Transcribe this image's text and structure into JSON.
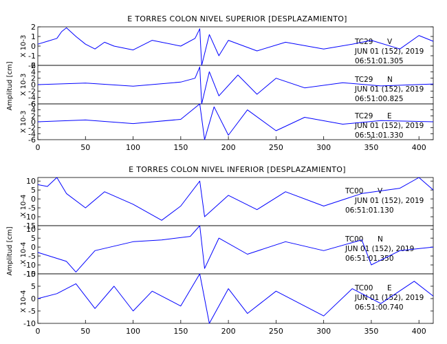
{
  "chart_data": [
    {
      "type": "line",
      "title": "E TORRES COLON NIVEL SUPERIOR [DESPLAZAMIENTO]",
      "ylabel": "Amplitud [cm]",
      "xlim": [
        0,
        415
      ],
      "x_ticks": [
        0,
        50,
        100,
        150,
        200,
        250,
        300,
        350,
        400
      ],
      "line_color": "#0000ff",
      "panels": [
        {
          "station": "TC29",
          "component": "V",
          "scale_label": "X 10-3",
          "date": "JUN 01 (152), 2019",
          "time": "06:51:01.305",
          "ylim": [
            -2,
            2
          ],
          "y_ticks": [
            -2,
            -1,
            0,
            1,
            2
          ],
          "series": [
            {
              "x": 0,
              "y": 0.2
            },
            {
              "x": 10,
              "y": 0.5
            },
            {
              "x": 20,
              "y": 0.8
            },
            {
              "x": 25,
              "y": 1.5
            },
            {
              "x": 30,
              "y": 1.9
            },
            {
              "x": 40,
              "y": 1.0
            },
            {
              "x": 50,
              "y": 0.2
            },
            {
              "x": 60,
              "y": -0.3
            },
            {
              "x": 70,
              "y": 0.4
            },
            {
              "x": 80,
              "y": 0.0
            },
            {
              "x": 100,
              "y": -0.4
            },
            {
              "x": 120,
              "y": 0.6
            },
            {
              "x": 150,
              "y": 0.0
            },
            {
              "x": 165,
              "y": 0.8
            },
            {
              "x": 170,
              "y": 1.8
            },
            {
              "x": 172,
              "y": -2.0
            },
            {
              "x": 180,
              "y": 1.2
            },
            {
              "x": 190,
              "y": -1.0
            },
            {
              "x": 200,
              "y": 0.6
            },
            {
              "x": 230,
              "y": -0.5
            },
            {
              "x": 260,
              "y": 0.4
            },
            {
              "x": 300,
              "y": -0.3
            },
            {
              "x": 330,
              "y": 0.2
            },
            {
              "x": 350,
              "y": 0.6
            },
            {
              "x": 380,
              "y": -0.3
            },
            {
              "x": 400,
              "y": 1.1
            },
            {
              "x": 415,
              "y": 0.5
            }
          ]
        },
        {
          "station": "TC29",
          "component": "N",
          "scale_label": "X 10-3",
          "date": "JUN 01 (152), 2019",
          "time": "06:51:00.825",
          "ylim": [
            -6,
            6
          ],
          "y_ticks": [
            -6,
            -4,
            -2,
            0,
            2,
            4,
            6
          ],
          "series": [
            {
              "x": 0,
              "y": 0.0
            },
            {
              "x": 50,
              "y": 0.5
            },
            {
              "x": 100,
              "y": -0.5
            },
            {
              "x": 150,
              "y": 0.8
            },
            {
              "x": 165,
              "y": 2.0
            },
            {
              "x": 170,
              "y": 5.5
            },
            {
              "x": 172,
              "y": -6.0
            },
            {
              "x": 180,
              "y": 4.0
            },
            {
              "x": 190,
              "y": -3.5
            },
            {
              "x": 210,
              "y": 3.0
            },
            {
              "x": 230,
              "y": -3.0
            },
            {
              "x": 250,
              "y": 2.0
            },
            {
              "x": 280,
              "y": -1.0
            },
            {
              "x": 320,
              "y": 0.6
            },
            {
              "x": 360,
              "y": -0.4
            },
            {
              "x": 415,
              "y": 0.2
            }
          ]
        },
        {
          "station": "TC29",
          "component": "E",
          "scale_label": "X 10-3",
          "date": "JUN 01 (152), 2019",
          "time": "06:51:01.330",
          "ylim": [
            -6,
            6
          ],
          "y_ticks": [
            -6,
            -4,
            -2,
            0,
            2,
            4,
            6
          ],
          "series": [
            {
              "x": 0,
              "y": 0.0
            },
            {
              "x": 50,
              "y": 0.6
            },
            {
              "x": 100,
              "y": -0.6
            },
            {
              "x": 150,
              "y": 0.8
            },
            {
              "x": 170,
              "y": 6.0
            },
            {
              "x": 175,
              "y": -6.0
            },
            {
              "x": 185,
              "y": 5.0
            },
            {
              "x": 200,
              "y": -4.5
            },
            {
              "x": 220,
              "y": 4.0
            },
            {
              "x": 250,
              "y": -3.0
            },
            {
              "x": 280,
              "y": 1.5
            },
            {
              "x": 320,
              "y": -0.8
            },
            {
              "x": 360,
              "y": 0.4
            },
            {
              "x": 415,
              "y": 0.0
            }
          ]
        }
      ]
    },
    {
      "type": "line",
      "title": "E TORRES COLON NIVEL INFERIOR [DESPLAZAMIENTO]",
      "ylabel": "Amplitud [cm]",
      "xlim": [
        0,
        415
      ],
      "x_ticks": [
        0,
        50,
        100,
        150,
        200,
        250,
        300,
        350,
        400
      ],
      "line_color": "#0000ff",
      "panels": [
        {
          "station": "TC00",
          "component": "V",
          "scale_label": "X 10-4",
          "date": "JUN 01 (152), 2019",
          "time": "06:51:01.130",
          "ylim": [
            -15,
            12
          ],
          "y_ticks": [
            -15,
            -10,
            -5,
            0,
            5,
            10
          ],
          "series": [
            {
              "x": 0,
              "y": 8
            },
            {
              "x": 10,
              "y": 7
            },
            {
              "x": 20,
              "y": 12
            },
            {
              "x": 30,
              "y": 3
            },
            {
              "x": 50,
              "y": -5
            },
            {
              "x": 70,
              "y": 4
            },
            {
              "x": 100,
              "y": -3
            },
            {
              "x": 130,
              "y": -12
            },
            {
              "x": 150,
              "y": -4
            },
            {
              "x": 170,
              "y": 10
            },
            {
              "x": 175,
              "y": -10
            },
            {
              "x": 200,
              "y": 2
            },
            {
              "x": 230,
              "y": -6
            },
            {
              "x": 260,
              "y": 4
            },
            {
              "x": 300,
              "y": -4
            },
            {
              "x": 340,
              "y": 3
            },
            {
              "x": 380,
              "y": 6
            },
            {
              "x": 400,
              "y": 12
            },
            {
              "x": 415,
              "y": 5
            }
          ]
        },
        {
          "station": "TC00",
          "component": "N",
          "scale_label": "X 10-4",
          "date": "JUN 01 (152), 2019",
          "time": "06:51:01.350",
          "ylim": [
            -15,
            12
          ],
          "y_ticks": [
            -15,
            -10,
            -5,
            0,
            5,
            10
          ],
          "series": [
            {
              "x": 0,
              "y": -3
            },
            {
              "x": 30,
              "y": -8
            },
            {
              "x": 40,
              "y": -14
            },
            {
              "x": 60,
              "y": -2
            },
            {
              "x": 100,
              "y": 3
            },
            {
              "x": 130,
              "y": 4
            },
            {
              "x": 160,
              "y": 6
            },
            {
              "x": 170,
              "y": 12
            },
            {
              "x": 175,
              "y": -12
            },
            {
              "x": 190,
              "y": 5
            },
            {
              "x": 220,
              "y": -4
            },
            {
              "x": 260,
              "y": 3
            },
            {
              "x": 300,
              "y": -2
            },
            {
              "x": 340,
              "y": 4
            },
            {
              "x": 350,
              "y": -10
            },
            {
              "x": 380,
              "y": -2
            },
            {
              "x": 415,
              "y": 0
            }
          ]
        },
        {
          "station": "TC00",
          "component": "E",
          "scale_label": "X 10-4",
          "date": "JUN 01 (152), 2019",
          "time": "06:51:00.740",
          "ylim": [
            -10,
            10
          ],
          "y_ticks": [
            -10,
            -5,
            0,
            5,
            10
          ],
          "series": [
            {
              "x": 0,
              "y": 0
            },
            {
              "x": 20,
              "y": 2
            },
            {
              "x": 40,
              "y": 6
            },
            {
              "x": 60,
              "y": -4
            },
            {
              "x": 80,
              "y": 5
            },
            {
              "x": 100,
              "y": -5
            },
            {
              "x": 120,
              "y": 3
            },
            {
              "x": 150,
              "y": -3
            },
            {
              "x": 170,
              "y": 10
            },
            {
              "x": 180,
              "y": -10
            },
            {
              "x": 200,
              "y": 4
            },
            {
              "x": 220,
              "y": -6
            },
            {
              "x": 250,
              "y": 3
            },
            {
              "x": 300,
              "y": -7
            },
            {
              "x": 330,
              "y": 4
            },
            {
              "x": 360,
              "y": -2
            },
            {
              "x": 395,
              "y": 7
            },
            {
              "x": 415,
              "y": 1
            }
          ]
        }
      ]
    }
  ]
}
